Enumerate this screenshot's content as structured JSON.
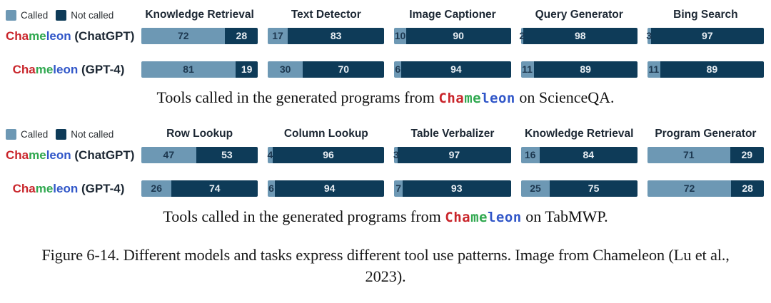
{
  "brand": {
    "p1": "Cha",
    "p2": "me",
    "p3": "leon"
  },
  "legend": {
    "called": "Called",
    "not_called": "Not called"
  },
  "colors": {
    "called": "#6d98b4",
    "not_called": "#0e3b58",
    "brand_red": "#c9252b",
    "brand_green": "#2fa84f",
    "brand_blue": "#3056c8"
  },
  "chart_data": [
    {
      "type": "bar",
      "orientation": "horizontal-stacked",
      "stack_total": 100,
      "xlim": [
        0,
        100
      ],
      "legend": [
        "Called",
        "Not called"
      ],
      "categories": [
        "Knowledge Retrieval",
        "Text Detector",
        "Image Captioner",
        "Query Generator",
        "Bing Search"
      ],
      "series": [
        {
          "name": "Chameleon (ChatGPT)",
          "label_suffix": " (ChatGPT)",
          "called": [
            72,
            17,
            10,
            2,
            3
          ],
          "not_called": [
            28,
            83,
            90,
            98,
            97
          ]
        },
        {
          "name": "Chameleon (GPT-4)",
          "label_suffix": " (GPT-4)",
          "called": [
            81,
            30,
            6,
            11,
            11
          ],
          "not_called": [
            19,
            70,
            94,
            89,
            89
          ]
        }
      ],
      "caption": {
        "prefix": "Tools called in the generated programs from ",
        "brand": "Chameleon",
        "suffix": " on ScienceQA."
      }
    },
    {
      "type": "bar",
      "orientation": "horizontal-stacked",
      "stack_total": 100,
      "xlim": [
        0,
        100
      ],
      "legend": [
        "Called",
        "Not called"
      ],
      "categories": [
        "Row Lookup",
        "Column Lookup",
        "Table Verbalizer",
        "Knowledge Retrieval",
        "Program Generator"
      ],
      "series": [
        {
          "name": "Chameleon (ChatGPT)",
          "label_suffix": " (ChatGPT)",
          "called": [
            47,
            4,
            3,
            16,
            71
          ],
          "not_called": [
            53,
            96,
            97,
            84,
            29
          ]
        },
        {
          "name": "Chameleon (GPT-4)",
          "label_suffix": " (GPT-4)",
          "called": [
            26,
            6,
            7,
            25,
            72
          ],
          "not_called": [
            74,
            94,
            93,
            75,
            28
          ]
        }
      ],
      "caption": {
        "prefix": "Tools called in the generated programs from ",
        "brand": "Chameleon",
        "suffix": " on TabMWP."
      }
    }
  ],
  "figure_caption": "Figure 6-14. Different models and tasks express different tool use patterns. Image from Chameleon (Lu et al., 2023)."
}
